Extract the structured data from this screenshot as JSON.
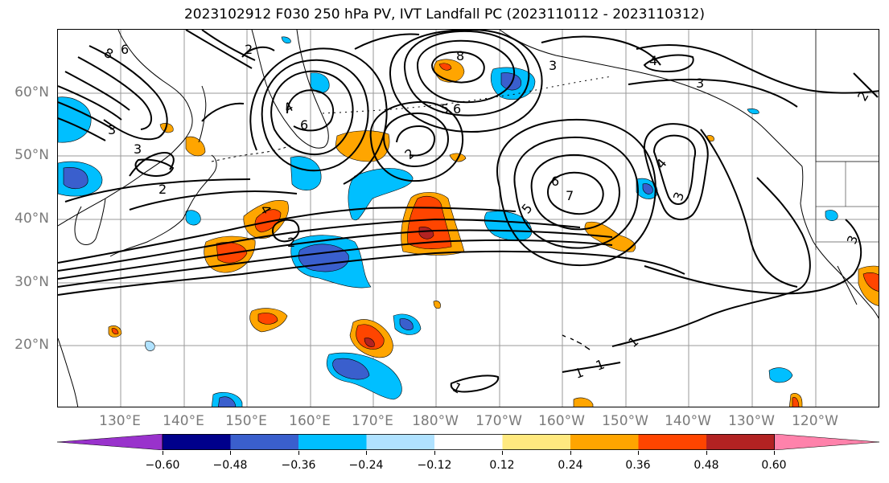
{
  "title": "2023102912 F030 250 hPa PV, IVT Landfall PC (2023110112 - 2023110312)",
  "map": {
    "lat_labels": [
      "60°N",
      "50°N",
      "40°N",
      "30°N",
      "20°N"
    ],
    "lon_labels": [
      "130°E",
      "140°E",
      "150°E",
      "160°E",
      "170°E",
      "180°W",
      "170°W",
      "160°W",
      "150°W",
      "140°W",
      "130°W",
      "120°W"
    ],
    "contour_labels": [
      "8",
      "6",
      "3",
      "3",
      "2",
      "2",
      "4",
      "6",
      "8",
      "5",
      "6",
      "2",
      "3",
      "4",
      "6",
      "7",
      "5",
      "4",
      "3",
      "4",
      "3",
      "1",
      "1",
      "1",
      "2",
      "1",
      "3",
      "2"
    ],
    "shading_colors": {
      "strong_negative": "#3f51c8",
      "moderate_negative": "#00bfff",
      "weak_negative": "#b0e2ff",
      "weak_positive": "#ffe97f",
      "moderate_positive": "#ffa500",
      "strong_positive": "#ff4500",
      "very_strong_positive": "#b22222"
    }
  },
  "colorbar": {
    "colors": [
      "#9932cc",
      "#00008b",
      "#3a5fcd",
      "#00bfff",
      "#b0e2ff",
      "#ffffff",
      "#ffe97f",
      "#ffa500",
      "#ff4500",
      "#b22222",
      "#ff82ab"
    ],
    "tick_labels": [
      "−0.60",
      "−0.48",
      "−0.36",
      "−0.24",
      "−0.12",
      "0.12",
      "0.24",
      "0.36",
      "0.48",
      "0.60"
    ]
  }
}
